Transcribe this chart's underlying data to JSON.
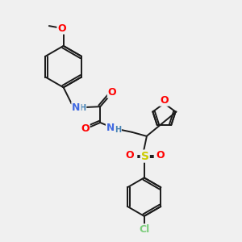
{
  "bg_color": "#f0f0f0",
  "bond_color": "#1a1a1a",
  "colors": {
    "N": "#4169e1",
    "O": "#ff0000",
    "S": "#cccc00",
    "Cl": "#7ccd7c",
    "H_label": "#4682b4",
    "C": "#1a1a1a"
  },
  "font_size": 8,
  "line_width": 1.4
}
